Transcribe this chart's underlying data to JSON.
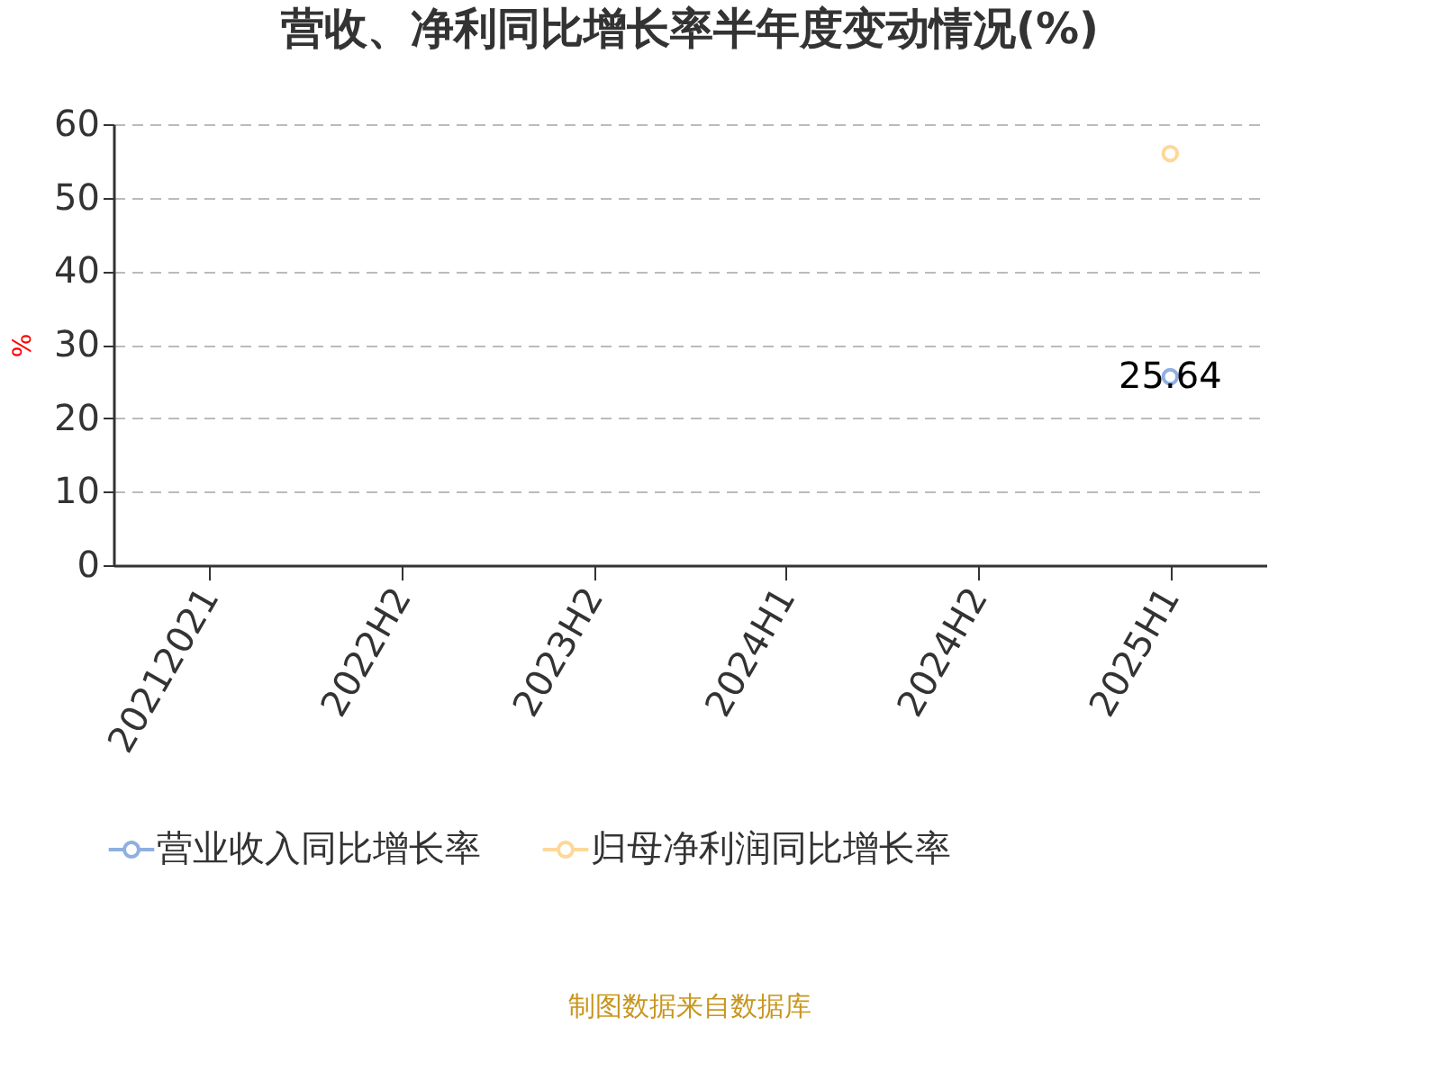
{
  "chart_data": {
    "type": "line",
    "title": "营收、净利同比增长率半年度变动情况(%)",
    "ylabel": "%",
    "categories": [
      "20212021",
      "2022H2",
      "2023H2",
      "2024H1",
      "2024H2",
      "2025H1"
    ],
    "series": [
      {
        "name": "营业收入同比增长率",
        "color": "#8eb0e0",
        "values": [
          null,
          null,
          null,
          null,
          null,
          25.64
        ],
        "value_labels": [
          null,
          null,
          null,
          null,
          null,
          "25.64"
        ]
      },
      {
        "name": "归母净利润同比增长率",
        "color": "#fdd89a",
        "values": [
          null,
          null,
          null,
          null,
          null,
          56
        ]
      }
    ],
    "ylim": [
      0,
      60
    ],
    "yticks": [
      0,
      10,
      20,
      30,
      40,
      50,
      60
    ],
    "grid": "y",
    "legend": "bottom",
    "marker": "circle",
    "line_style": "solid",
    "annotations": [
      "制图数据来自数据库"
    ]
  }
}
